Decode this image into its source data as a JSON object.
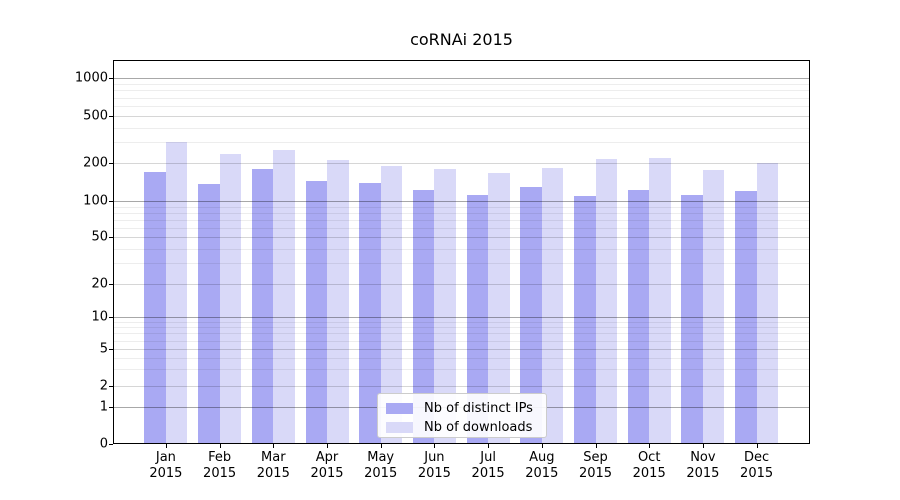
{
  "figure": {
    "title": "coRNAi 2015",
    "background_color": "#ffffff"
  },
  "chart_data": {
    "type": "bar",
    "title": "coRNAi 2015",
    "categories": [
      "Jan 2015",
      "Feb 2015",
      "Mar 2015",
      "Apr 2015",
      "May 2015",
      "Jun 2015",
      "Jul 2015",
      "Aug 2015",
      "Sep 2015",
      "Oct 2015",
      "Nov 2015",
      "Dec 2015"
    ],
    "series": [
      {
        "name": "Nb of distinct IPs",
        "color": "#a9a9f3",
        "values": [
          170,
          137,
          180,
          145,
          140,
          124,
          113,
          129,
          110,
          124,
          113,
          121
        ]
      },
      {
        "name": "Nb of downloads",
        "color": "#d9d9f8",
        "values": [
          300,
          240,
          260,
          215,
          192,
          180,
          167,
          183,
          216,
          222,
          177,
          200
        ]
      }
    ],
    "xlabel": "",
    "ylabel": "",
    "yscale": "symlog",
    "y_ticks": [
      0,
      1,
      2,
      5,
      10,
      20,
      50,
      100,
      200,
      500,
      1000
    ],
    "ylim": [
      0,
      1400
    ],
    "grid": true,
    "grid_on_top_of_bars": true,
    "legend_position": "lower center",
    "axis_color": "#000000",
    "text_color": "#000000"
  }
}
